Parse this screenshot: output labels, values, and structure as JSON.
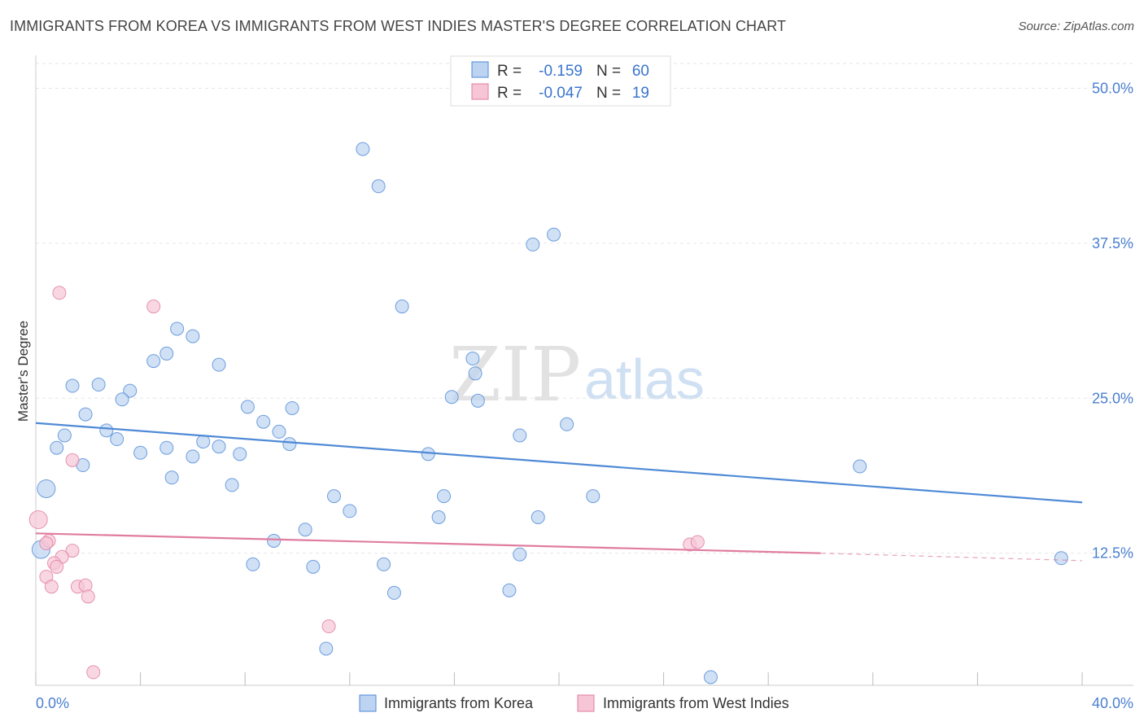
{
  "header": {
    "title": "IMMIGRANTS FROM KOREA VS IMMIGRANTS FROM WEST INDIES MASTER'S DEGREE CORRELATION CHART",
    "source": "Source: ZipAtlas.com"
  },
  "watermark": {
    "zip": "ZIP",
    "atlas": "atlas"
  },
  "chart_data": {
    "type": "scatter",
    "title": "IMMIGRANTS FROM KOREA VS IMMIGRANTS FROM WEST INDIES MASTER'S DEGREE CORRELATION CHART",
    "xlabel": "",
    "ylabel": "Master's Degree",
    "xlim": [
      0,
      40
    ],
    "ylim": [
      2.5,
      52
    ],
    "x_tick_labels": {
      "min": "0.0%",
      "max": "40.0%"
    },
    "y_ticks": [
      {
        "value": 12.5,
        "label": "12.5%"
      },
      {
        "value": 25.0,
        "label": "25.0%"
      },
      {
        "value": 37.5,
        "label": "37.5%"
      },
      {
        "value": 50.0,
        "label": "50.0%"
      }
    ],
    "grid": true,
    "legend_position": "bottom-center",
    "stats_box_position": "top-center",
    "series": [
      {
        "name": "Immigrants from Korea",
        "color": "#4f8ad6",
        "fill": "#bcd3f1",
        "R_label": "R =",
        "R": "-0.159",
        "N_label": "N =",
        "N": "60",
        "trend": {
          "x": [
            0,
            40
          ],
          "y": [
            23.0,
            16.6
          ]
        },
        "points": [
          [
            12.5,
            45.1
          ],
          [
            13.1,
            42.1
          ],
          [
            19.0,
            37.4
          ],
          [
            19.8,
            38.2
          ],
          [
            14.0,
            32.4
          ],
          [
            5.4,
            30.6
          ],
          [
            6.0,
            30.0
          ],
          [
            5.0,
            28.6
          ],
          [
            4.5,
            28.0
          ],
          [
            7.0,
            27.7
          ],
          [
            16.7,
            28.2
          ],
          [
            16.8,
            27.0
          ],
          [
            1.4,
            26.0
          ],
          [
            2.4,
            26.1
          ],
          [
            3.6,
            25.6
          ],
          [
            3.3,
            24.9
          ],
          [
            15.9,
            25.1
          ],
          [
            16.9,
            24.8
          ],
          [
            8.1,
            24.3
          ],
          [
            9.8,
            24.2
          ],
          [
            1.9,
            23.7
          ],
          [
            8.7,
            23.1
          ],
          [
            20.3,
            22.9
          ],
          [
            2.7,
            22.4
          ],
          [
            1.1,
            22.0
          ],
          [
            3.1,
            21.7
          ],
          [
            9.3,
            22.3
          ],
          [
            6.4,
            21.5
          ],
          [
            9.7,
            21.3
          ],
          [
            0.8,
            21.0
          ],
          [
            5.0,
            21.0
          ],
          [
            7.0,
            21.1
          ],
          [
            4.0,
            20.6
          ],
          [
            6.0,
            20.3
          ],
          [
            7.8,
            20.5
          ],
          [
            15.0,
            20.5
          ],
          [
            18.5,
            22.0
          ],
          [
            1.8,
            19.6
          ],
          [
            5.2,
            18.6
          ],
          [
            7.5,
            18.0
          ],
          [
            31.5,
            19.5
          ],
          [
            0.4,
            17.7
          ],
          [
            11.4,
            17.1
          ],
          [
            15.6,
            17.1
          ],
          [
            21.3,
            17.1
          ],
          [
            12.0,
            15.9
          ],
          [
            15.4,
            15.4
          ],
          [
            19.2,
            15.4
          ],
          [
            10.3,
            14.4
          ],
          [
            9.1,
            13.5
          ],
          [
            18.5,
            12.4
          ],
          [
            0.2,
            12.8
          ],
          [
            8.3,
            11.6
          ],
          [
            13.3,
            11.6
          ],
          [
            10.6,
            11.4
          ],
          [
            39.2,
            12.1
          ],
          [
            13.7,
            9.3
          ],
          [
            18.1,
            9.5
          ],
          [
            11.1,
            4.8
          ],
          [
            25.8,
            2.5
          ]
        ]
      },
      {
        "name": "Immigrants from West Indies",
        "color": "#e07ca0",
        "fill": "#f7c6d6",
        "R_label": "R =",
        "R": "-0.047",
        "N_label": "N =",
        "N": "19",
        "trend": {
          "x": [
            0,
            30
          ],
          "y": [
            14.1,
            12.5
          ]
        },
        "trend_extension": {
          "x": [
            30,
            40
          ],
          "y": [
            12.5,
            11.9
          ]
        },
        "points": [
          [
            0.9,
            33.5
          ],
          [
            4.5,
            32.4
          ],
          [
            1.4,
            20.0
          ],
          [
            0.1,
            15.2
          ],
          [
            0.5,
            13.5
          ],
          [
            0.4,
            13.3
          ],
          [
            1.4,
            12.7
          ],
          [
            1.0,
            12.2
          ],
          [
            0.7,
            11.7
          ],
          [
            0.8,
            11.4
          ],
          [
            0.4,
            10.6
          ],
          [
            0.6,
            9.8
          ],
          [
            1.6,
            9.8
          ],
          [
            1.9,
            9.9
          ],
          [
            2.0,
            9.0
          ],
          [
            11.2,
            6.6
          ],
          [
            2.2,
            2.9
          ],
          [
            25.0,
            13.2
          ],
          [
            25.3,
            13.4
          ]
        ]
      }
    ]
  }
}
